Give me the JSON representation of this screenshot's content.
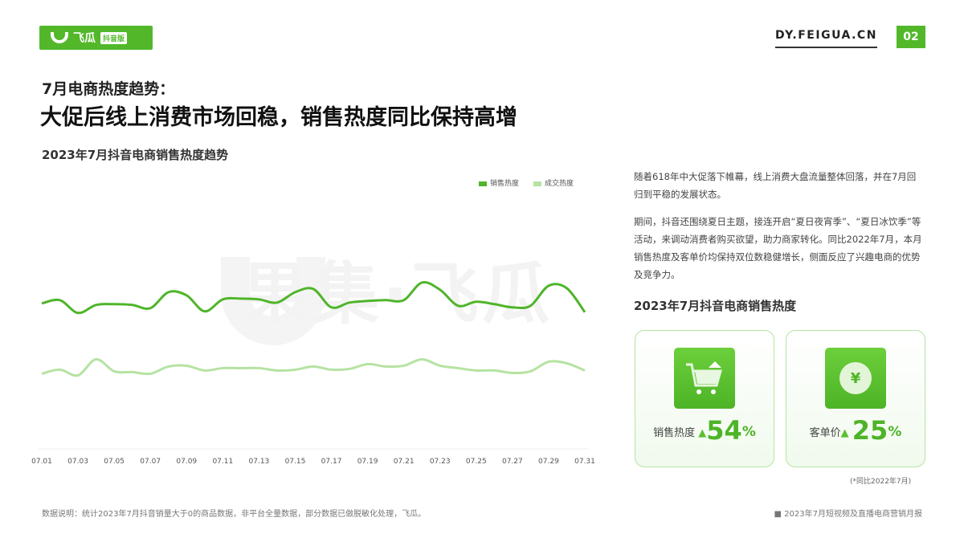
{
  "header": {
    "logo_text": "飞瓜",
    "logo_tag": "抖音版",
    "site": "DY.FEIGUA.CN",
    "page": "02"
  },
  "subtitle": "7月电商热度趋势：",
  "title": "大促后线上消费市场回稳，销售热度同比保持高增",
  "watermark": "果集·飞瓜",
  "chart_data": {
    "type": "line",
    "title": "2023年7月抖音电商销售热度趋势",
    "xlabel": "",
    "ylabel": "",
    "grid": false,
    "legend_position": "top-right",
    "ylim": [
      0,
      230
    ],
    "x": [
      "07.01",
      "07.02",
      "07.03",
      "07.04",
      "07.05",
      "07.06",
      "07.07",
      "07.08",
      "07.09",
      "07.10",
      "07.11",
      "07.12",
      "07.13",
      "07.14",
      "07.15",
      "07.16",
      "07.17",
      "07.18",
      "07.19",
      "07.20",
      "07.21",
      "07.22",
      "07.23",
      "07.24",
      "07.25",
      "07.26",
      "07.27",
      "07.28",
      "07.29",
      "07.30",
      "07.31"
    ],
    "xticks": [
      "07.01",
      "07.03",
      "07.05",
      "07.07",
      "07.09",
      "07.11",
      "07.13",
      "07.15",
      "07.17",
      "07.19",
      "07.21",
      "07.23",
      "07.25",
      "07.27",
      "07.29",
      "07.31"
    ],
    "series": [
      {
        "name": "销售热度",
        "color": "#4fb52a",
        "values": [
          182,
          186,
          170,
          180,
          181,
          180,
          176,
          196,
          192,
          172,
          187,
          188,
          187,
          183,
          196,
          200,
          177,
          183,
          185,
          186,
          186,
          208,
          199,
          179,
          184,
          181,
          177,
          179,
          204,
          201,
          171
        ]
      },
      {
        "name": "成交热度",
        "color": "#b5e3a2",
        "values": [
          94,
          99,
          92,
          112,
          97,
          96,
          94,
          103,
          104,
          98,
          101,
          101,
          101,
          98,
          99,
          103,
          99,
          100,
          106,
          103,
          104,
          112,
          104,
          101,
          98,
          98,
          95,
          97,
          109,
          107,
          98
        ]
      }
    ]
  },
  "text": {
    "p1": "随着618年中大促落下帷幕，线上消费大盘流量整体回落，并在7月回归到平稳的发展状态。",
    "p2": "期间，抖音还围绕夏日主题，接连开启“夏日夜宵季”、“夏日冰饮季”等活动，来调动消费者购买欲望，助力商家转化。同比2022年7月，本月销售热度及客单价均保持双位数稳健增长，侧面反应了兴趣电商的优势及竞争力。"
  },
  "kpi": {
    "title": "2023年7月抖音电商销售热度",
    "cards": [
      {
        "label": "销售热度",
        "value": "54",
        "unit": "%",
        "icon": "shopping-cart-icon"
      },
      {
        "label": "客单价",
        "value": "25",
        "unit": "%",
        "icon": "yuan-coin-icon",
        "symbol": "¥"
      }
    ],
    "note": "(*同比2022年7月)"
  },
  "footer": {
    "left": "数据说明：统计2023年7月抖音销量大于0的商品数据，非平台全量数据，部分数据已做脱敏化处理，飞瓜。",
    "right": "■ 2023年7月短视频及直播电商营销月报"
  }
}
